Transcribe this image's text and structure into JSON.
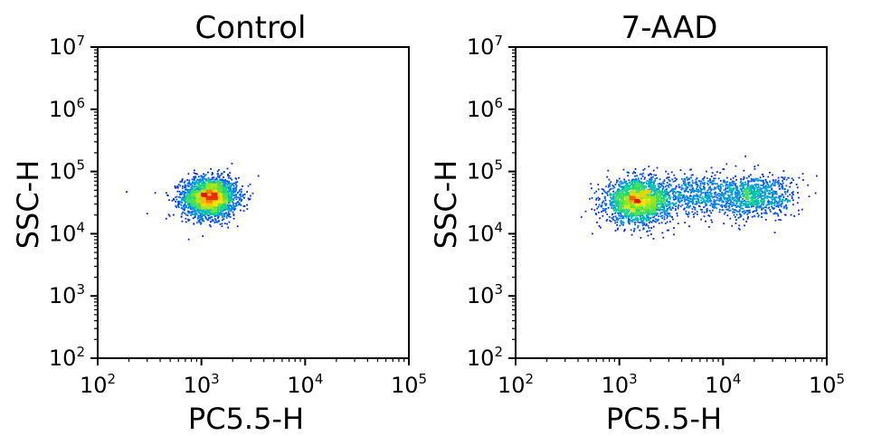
{
  "chart_data": [
    {
      "type": "scatter",
      "title": "Control",
      "xlabel": "PC5.5-H",
      "ylabel": "SSC-H",
      "xscale": "log",
      "yscale": "log",
      "xlim": [
        100,
        100000
      ],
      "ylim": [
        100,
        10000000
      ],
      "x_ticks": [
        {
          "base": "10",
          "exp": "2",
          "value": 100
        },
        {
          "base": "10",
          "exp": "3",
          "value": 1000
        },
        {
          "base": "10",
          "exp": "4",
          "value": 10000
        },
        {
          "base": "10",
          "exp": "5",
          "value": 100000
        }
      ],
      "y_ticks": [
        {
          "base": "10",
          "exp": "2",
          "value": 100
        },
        {
          "base": "10",
          "exp": "3",
          "value": 1000
        },
        {
          "base": "10",
          "exp": "4",
          "value": 10000
        },
        {
          "base": "10",
          "exp": "5",
          "value": 100000
        },
        {
          "base": "10",
          "exp": "6",
          "value": 1000000
        },
        {
          "base": "10",
          "exp": "7",
          "value": 10000000
        }
      ],
      "grid": false,
      "color_scale": "density (blue-green-yellow-red)",
      "populations": [
        {
          "center_x": 1200,
          "center_y": 38000,
          "spread_x_decades": 0.13,
          "spread_y_decades": 0.16,
          "events": 2600
        }
      ],
      "outliers": [
        {
          "x": 190,
          "y": 47000
        },
        {
          "x": 300,
          "y": 21000
        }
      ]
    },
    {
      "type": "scatter",
      "title": "7-AAD",
      "xlabel": "PC5.5-H",
      "ylabel": "SSC-H",
      "xscale": "log",
      "yscale": "log",
      "xlim": [
        100,
        100000
      ],
      "ylim": [
        100,
        10000000
      ],
      "x_ticks": [
        {
          "base": "10",
          "exp": "2",
          "value": 100
        },
        {
          "base": "10",
          "exp": "3",
          "value": 1000
        },
        {
          "base": "10",
          "exp": "4",
          "value": 10000
        },
        {
          "base": "10",
          "exp": "5",
          "value": 100000
        }
      ],
      "y_ticks": [
        {
          "base": "10",
          "exp": "2",
          "value": 100
        },
        {
          "base": "10",
          "exp": "3",
          "value": 1000
        },
        {
          "base": "10",
          "exp": "4",
          "value": 10000
        },
        {
          "base": "10",
          "exp": "5",
          "value": 100000
        },
        {
          "base": "10",
          "exp": "6",
          "value": 1000000
        },
        {
          "base": "10",
          "exp": "7",
          "value": 10000000
        }
      ],
      "grid": false,
      "color_scale": "density (blue-green-yellow-red)",
      "populations": [
        {
          "center_x": 1500,
          "center_y": 33000,
          "spread_x_decades": 0.15,
          "spread_y_decades": 0.17,
          "events": 2000
        },
        {
          "center_x": 5000,
          "center_y": 42000,
          "spread_x_decades": 0.25,
          "spread_y_decades": 0.18,
          "events": 700
        },
        {
          "center_x": 20000,
          "center_y": 40000,
          "spread_x_decades": 0.2,
          "spread_y_decades": 0.17,
          "events": 900
        }
      ],
      "outliers": [
        {
          "x": 80000,
          "y": 85000
        },
        {
          "x": 78000,
          "y": 45000
        },
        {
          "x": 550,
          "y": 10000
        }
      ]
    }
  ]
}
